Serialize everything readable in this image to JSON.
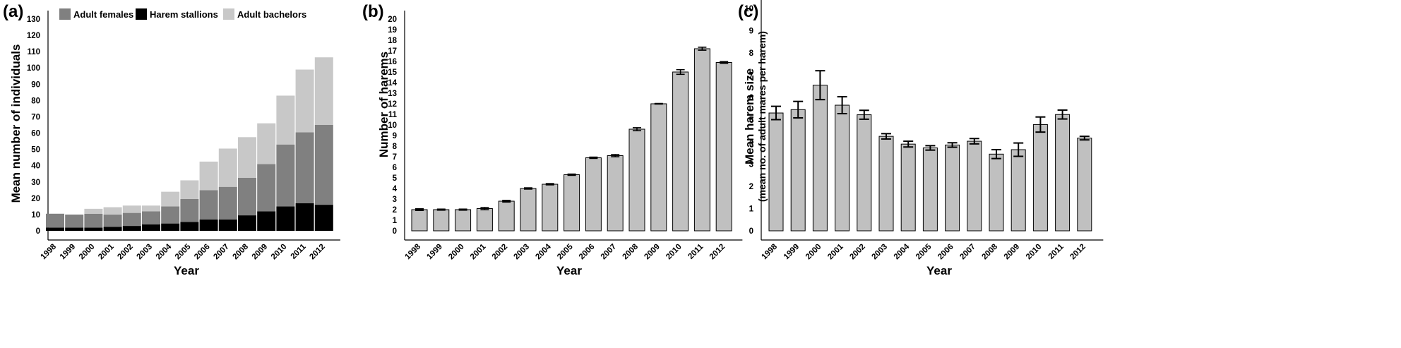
{
  "colors": {
    "females": "#808080",
    "stallions": "#000000",
    "bachelors": "#c8c8c8",
    "bar_gray": "#c0c0c0",
    "axis": "#000000"
  },
  "chart_data": [
    {
      "type": "bar",
      "stacked": true,
      "panel_label": "(a)",
      "categories": [
        "1998",
        "1999",
        "2000",
        "2001",
        "2002",
        "2003",
        "2004",
        "2005",
        "2006",
        "2007",
        "2008",
        "2009",
        "2010",
        "2011",
        "2012"
      ],
      "series": [
        {
          "name": "Harem stallions",
          "values": [
            2,
            2,
            2,
            2.5,
            3,
            4,
            4.5,
            5.5,
            7,
            7,
            9.5,
            12,
            15,
            17,
            16
          ]
        },
        {
          "name": "Adult females",
          "values": [
            8.5,
            8,
            8.5,
            7.5,
            8,
            8,
            10.5,
            14,
            18,
            20,
            23,
            29,
            38,
            43.5,
            49
          ]
        },
        {
          "name": "Adult bachelors",
          "values": [
            0,
            0,
            3,
            4.5,
            4.5,
            3.5,
            9,
            11.5,
            17.5,
            23.5,
            25,
            25,
            30,
            38.5,
            41.5
          ]
        }
      ],
      "legend": [
        "Adult females",
        "Harem stallions",
        "Adult bachelors"
      ],
      "legend_position": "top",
      "xlabel": "Year",
      "ylabel": "Mean number of individuals",
      "ylim": [
        0,
        130
      ],
      "yticks": [
        0,
        10,
        20,
        30,
        40,
        50,
        60,
        70,
        80,
        90,
        100,
        110,
        120,
        130
      ]
    },
    {
      "type": "bar",
      "panel_label": "(b)",
      "categories": [
        "1998",
        "1999",
        "2000",
        "2001",
        "2002",
        "2003",
        "2004",
        "2005",
        "2006",
        "2007",
        "2008",
        "2009",
        "2010",
        "2011",
        "2012"
      ],
      "values": [
        2.0,
        2.0,
        2.0,
        2.1,
        2.8,
        4.0,
        4.4,
        5.3,
        6.9,
        7.1,
        9.6,
        12.0,
        15.0,
        17.2,
        15.9
      ],
      "errors": [
        0.08,
        0.05,
        0.05,
        0.1,
        0.08,
        0.06,
        0.06,
        0.06,
        0.06,
        0.1,
        0.14,
        0.03,
        0.22,
        0.14,
        0.08
      ],
      "xlabel": "Year",
      "ylabel": "Number of harems",
      "ylim": [
        0,
        20
      ],
      "yticks": [
        0,
        1,
        2,
        3,
        4,
        5,
        6,
        7,
        8,
        9,
        10,
        11,
        12,
        13,
        14,
        15,
        16,
        17,
        18,
        19,
        20
      ]
    },
    {
      "type": "bar",
      "panel_label": "(c)",
      "categories": [
        "1998",
        "1999",
        "2000",
        "2001",
        "2002",
        "2003",
        "2004",
        "2005",
        "2006",
        "2007",
        "2008",
        "2009",
        "2010",
        "2011",
        "2012"
      ],
      "values": [
        5.3,
        5.45,
        6.55,
        5.65,
        5.22,
        4.25,
        3.9,
        3.73,
        3.86,
        4.03,
        3.45,
        3.65,
        4.78,
        5.23,
        4.17
      ],
      "errors": [
        0.3,
        0.37,
        0.65,
        0.38,
        0.2,
        0.12,
        0.13,
        0.1,
        0.1,
        0.12,
        0.2,
        0.3,
        0.34,
        0.2,
        0.08
      ],
      "xlabel": "Year",
      "ylabel": "Mean harem size",
      "ylabel2": "(mean no. of adult mares per harem)",
      "ylim": [
        0,
        10
      ],
      "yticks": [
        0,
        1,
        2,
        3,
        4,
        5,
        6,
        7,
        8,
        9,
        10
      ]
    }
  ]
}
